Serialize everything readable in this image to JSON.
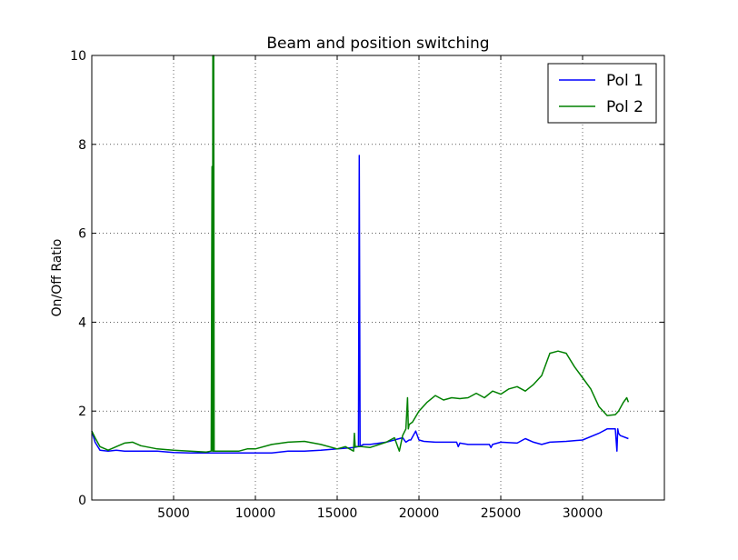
{
  "chart_data": {
    "type": "line",
    "title": "Beam and position switching",
    "xlabel": "",
    "ylabel": "On/Off Ratio",
    "xlim": [
      0,
      35000
    ],
    "ylim": [
      0,
      10
    ],
    "xticks": [
      5000,
      10000,
      15000,
      20000,
      25000,
      30000
    ],
    "xtick_labels": [
      "5000",
      "10000",
      "15000",
      "20000",
      "25000",
      "30000"
    ],
    "yticks": [
      0,
      2,
      4,
      6,
      8,
      10
    ],
    "ytick_labels": [
      "0",
      "2",
      "4",
      "6",
      "8",
      "10"
    ],
    "grid": true,
    "legend_position": "top-right",
    "series": [
      {
        "name": "Pol 1",
        "color": "#0000ff",
        "x": [
          0,
          200,
          500,
          1000,
          1500,
          2000,
          3000,
          4000,
          5000,
          6000,
          7000,
          7300,
          7400,
          7500,
          8000,
          9000,
          10000,
          11000,
          12000,
          13000,
          14000,
          15000,
          16000,
          16300,
          16350,
          16400,
          16450,
          16600,
          17000,
          18000,
          19000,
          19200,
          19400,
          19500,
          19800,
          20000,
          20300,
          21000,
          22000,
          22300,
          22400,
          22500,
          23000,
          24000,
          24300,
          24400,
          24500,
          25000,
          26000,
          26500,
          27000,
          27500,
          28000,
          29000,
          30000,
          31000,
          31500,
          32000,
          32100,
          32150,
          32200,
          32300,
          32800
        ],
        "y": [
          1.55,
          1.3,
          1.12,
          1.1,
          1.12,
          1.1,
          1.1,
          1.1,
          1.07,
          1.06,
          1.06,
          1.06,
          1.06,
          1.06,
          1.06,
          1.06,
          1.06,
          1.06,
          1.1,
          1.1,
          1.12,
          1.15,
          1.18,
          1.2,
          7.75,
          1.2,
          1.22,
          1.25,
          1.25,
          1.3,
          1.4,
          1.3,
          1.35,
          1.35,
          1.55,
          1.35,
          1.32,
          1.3,
          1.3,
          1.3,
          1.2,
          1.28,
          1.25,
          1.25,
          1.25,
          1.18,
          1.25,
          1.3,
          1.28,
          1.38,
          1.3,
          1.25,
          1.3,
          1.32,
          1.35,
          1.5,
          1.6,
          1.6,
          1.1,
          1.6,
          1.5,
          1.45,
          1.38
        ]
      },
      {
        "name": "Pol 2",
        "color": "#008000",
        "x": [
          0,
          200,
          500,
          1000,
          2000,
          2500,
          3000,
          4000,
          5000,
          6000,
          7000,
          7300,
          7350,
          7380,
          7400,
          7420,
          7450,
          7480,
          7500,
          8000,
          9000,
          9500,
          10000,
          11000,
          12000,
          13000,
          14000,
          15000,
          15500,
          16000,
          16050,
          16100,
          16500,
          17000,
          18000,
          18500,
          18800,
          19000,
          19200,
          19300,
          19350,
          19400,
          19600,
          20000,
          20500,
          21000,
          21500,
          22000,
          22500,
          23000,
          23500,
          24000,
          24500,
          25000,
          25500,
          26000,
          26500,
          27000,
          27500,
          28000,
          28500,
          29000,
          29500,
          30000,
          30500,
          31000,
          31500,
          32000,
          32200,
          32500,
          32700,
          32800
        ],
        "y": [
          1.55,
          1.4,
          1.2,
          1.12,
          1.28,
          1.3,
          1.22,
          1.15,
          1.12,
          1.1,
          1.08,
          1.1,
          7.5,
          1.1,
          10,
          1.1,
          10,
          1.1,
          1.1,
          1.1,
          1.1,
          1.15,
          1.15,
          1.25,
          1.3,
          1.32,
          1.25,
          1.15,
          1.2,
          1.1,
          1.5,
          1.2,
          1.2,
          1.18,
          1.3,
          1.4,
          1.1,
          1.45,
          1.6,
          2.3,
          1.6,
          1.7,
          1.75,
          2.0,
          2.2,
          2.35,
          2.25,
          2.3,
          2.28,
          2.3,
          2.4,
          2.3,
          2.45,
          2.38,
          2.5,
          2.55,
          2.45,
          2.6,
          2.8,
          3.3,
          3.35,
          3.3,
          3.0,
          2.75,
          2.5,
          2.1,
          1.9,
          1.92,
          2.0,
          2.2,
          2.3,
          2.2
        ]
      }
    ]
  }
}
